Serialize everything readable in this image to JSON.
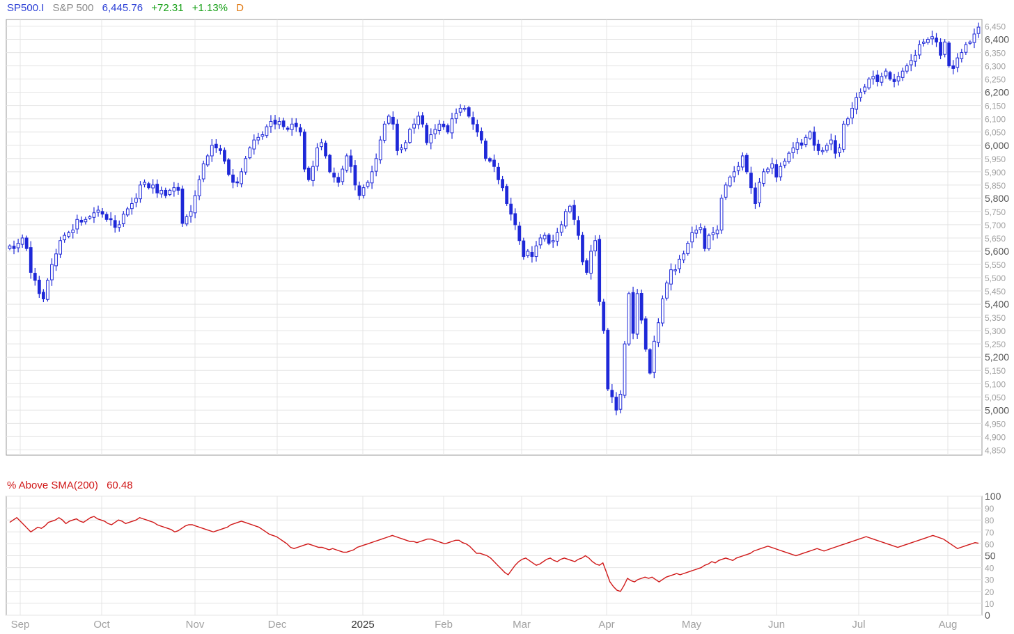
{
  "header": {
    "symbol": "SP500.I",
    "name": "S&P 500",
    "last": "6,445.76",
    "change": "+72.31",
    "change_pct": "+1.13%",
    "period": "D"
  },
  "indicator": {
    "label": "% Above SMA(200)",
    "value": "60.48"
  },
  "colors": {
    "candle": "#1e28d8",
    "indicator_line": "#d01818",
    "grid": "#e4e4e4",
    "frame": "#9a9a9a",
    "axis_text": "#a0a0a0",
    "axis_text_major": "#555555"
  },
  "chart_data": [
    {
      "type": "candlestick",
      "title": "SP500.I S&P 500",
      "x_axis_labels": [
        "Sep",
        "Oct",
        "Nov",
        "Dec",
        "2025",
        "Feb",
        "Mar",
        "Apr",
        "May",
        "Jun",
        "Jul",
        "Aug"
      ],
      "y_ticks": [
        4850,
        4900,
        4950,
        5000,
        5050,
        5100,
        5150,
        5200,
        5250,
        5300,
        5350,
        5400,
        5450,
        5500,
        5550,
        5600,
        5650,
        5700,
        5750,
        5800,
        5850,
        5900,
        5950,
        6000,
        6050,
        6100,
        6150,
        6200,
        6250,
        6300,
        6350,
        6400,
        6450
      ],
      "major_ticks": [
        5000,
        5200,
        5400,
        5600,
        5800,
        6000,
        6200,
        6400
      ],
      "ylim": [
        4830,
        6475
      ],
      "grid": true,
      "close_series": [
        5620,
        5610,
        5630,
        5650,
        5610,
        5520,
        5490,
        5440,
        5420,
        5490,
        5550,
        5590,
        5640,
        5660,
        5670,
        5680,
        5720,
        5710,
        5720,
        5730,
        5745,
        5755,
        5740,
        5720,
        5720,
        5690,
        5700,
        5740,
        5760,
        5780,
        5800,
        5850,
        5860,
        5840,
        5850,
        5820,
        5830,
        5810,
        5830,
        5840,
        5830,
        5705,
        5730,
        5750,
        5810,
        5870,
        5930,
        5960,
        6000,
        5990,
        5980,
        5940,
        5890,
        5860,
        5860,
        5900,
        5950,
        5990,
        6020,
        6030,
        6040,
        6070,
        6090,
        6080,
        6090,
        6070,
        6060,
        6080,
        6070,
        6050,
        5910,
        5870,
        5920,
        5990,
        6010,
        5960,
        5900,
        5880,
        5860,
        5910,
        5960,
        5920,
        5850,
        5810,
        5840,
        5860,
        5900,
        5950,
        6020,
        6080,
        6110,
        6080,
        5980,
        5990,
        6010,
        6060,
        6080,
        6110,
        6080,
        6010,
        6040,
        6060,
        6080,
        6070,
        6050,
        6100,
        6120,
        6140,
        6140,
        6110,
        6080,
        6050,
        6020,
        5950,
        5940,
        5920,
        5870,
        5840,
        5780,
        5740,
        5700,
        5640,
        5580,
        5600,
        5580,
        5620,
        5650,
        5660,
        5630,
        5640,
        5670,
        5700,
        5750,
        5770,
        5720,
        5660,
        5560,
        5520,
        5600,
        5640,
        5410,
        5300,
        5080,
        5050,
        5000,
        5060,
        5250,
        5440,
        5290,
        5440,
        5340,
        5230,
        5140,
        5260,
        5330,
        5420,
        5480,
        5530,
        5530,
        5570,
        5590,
        5630,
        5670,
        5680,
        5690,
        5610,
        5660,
        5670,
        5680,
        5800,
        5850,
        5880,
        5900,
        5920,
        5960,
        5900,
        5840,
        5780,
        5860,
        5900,
        5910,
        5930,
        5880,
        5920,
        5940,
        5970,
        5990,
        6010,
        6000,
        6030,
        6050,
        6000,
        5980,
        5980,
        6000,
        6020,
        5970,
        5990,
        6080,
        6100,
        6140,
        6180,
        6200,
        6220,
        6250,
        6260,
        6240,
        6260,
        6280,
        6250,
        6240,
        6260,
        6280,
        6300,
        6320,
        6340,
        6380,
        6390,
        6400,
        6410,
        6390,
        6340,
        6390,
        6300,
        6290,
        6330,
        6350,
        6380,
        6390,
        6420,
        6446
      ]
    },
    {
      "type": "line",
      "title": "% Above SMA(200)",
      "last_value": 60.48,
      "y_ticks": [
        0,
        10,
        20,
        30,
        40,
        50,
        60,
        70,
        80,
        90,
        100
      ],
      "major_ticks": [
        0,
        50,
        100
      ],
      "ylim": [
        0,
        100
      ],
      "grid": true,
      "values": [
        78,
        80,
        82,
        79,
        76,
        73,
        70,
        72,
        74,
        73,
        75,
        78,
        79,
        80,
        82,
        80,
        77,
        79,
        80,
        81,
        79,
        78,
        80,
        82,
        83,
        81,
        80,
        79,
        77,
        76,
        78,
        80,
        79,
        77,
        78,
        79,
        80,
        82,
        81,
        80,
        79,
        78,
        76,
        75,
        74,
        73,
        72,
        70,
        71,
        73,
        75,
        76,
        76,
        75,
        74,
        73,
        72,
        71,
        70,
        71,
        72,
        73,
        74,
        76,
        77,
        78,
        79,
        78,
        77,
        76,
        75,
        74,
        72,
        70,
        68,
        67,
        66,
        64,
        62,
        60,
        57,
        56,
        57,
        58,
        59,
        60,
        59,
        58,
        57,
        57,
        56,
        55,
        56,
        55,
        54,
        53,
        53,
        54,
        55,
        57,
        58,
        59,
        60,
        61,
        62,
        63,
        64,
        65,
        66,
        67,
        66,
        65,
        64,
        63,
        62,
        62,
        61,
        62,
        63,
        64,
        64,
        63,
        62,
        61,
        60,
        61,
        62,
        63,
        63,
        61,
        60,
        58,
        55,
        52,
        52,
        51,
        50,
        48,
        45,
        42,
        39,
        36,
        34,
        38,
        42,
        45,
        47,
        48,
        46,
        44,
        42,
        43,
        45,
        47,
        48,
        46,
        45,
        47,
        48,
        47,
        46,
        45,
        47,
        48,
        50,
        48,
        45,
        43,
        42,
        44,
        36,
        28,
        24,
        21,
        20,
        25,
        31,
        29,
        28,
        30,
        31,
        32,
        31,
        32,
        30,
        28,
        30,
        32,
        33,
        34,
        35,
        34,
        35,
        36,
        37,
        38,
        39,
        40,
        42,
        43,
        45,
        44,
        46,
        47,
        48,
        47,
        46,
        48,
        49,
        50,
        51,
        52,
        54,
        55,
        56,
        57,
        58,
        57,
        56,
        55,
        54,
        53,
        52,
        51,
        50,
        51,
        52,
        53,
        54,
        55,
        56,
        55,
        54,
        55,
        56,
        57,
        58,
        59,
        60,
        61,
        62,
        63,
        64,
        65,
        66,
        65,
        64,
        63,
        62,
        61,
        60,
        59,
        58,
        57,
        58,
        59,
        60,
        61,
        62,
        63,
        64,
        65,
        66,
        67,
        66,
        65,
        64,
        62,
        60,
        58,
        56,
        57,
        58,
        59,
        60,
        61,
        60.48
      ]
    }
  ]
}
